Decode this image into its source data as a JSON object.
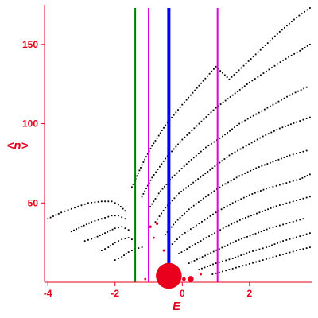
{
  "chart_data": {
    "type": "scatter",
    "title": "",
    "xlabel": "E",
    "ylabel": "<n>",
    "xlim": [
      -4.1,
      3.85
    ],
    "ylim": [
      0,
      175
    ],
    "xticks": [
      {
        "value": -4,
        "label": "-4"
      },
      {
        "value": -2,
        "label": "-2"
      },
      {
        "value": 0,
        "label": "0"
      },
      {
        "value": 2,
        "label": "2"
      }
    ],
    "yticks": [
      {
        "value": 50,
        "label": "50"
      },
      {
        "value": 100,
        "label": "100"
      },
      {
        "value": 150,
        "label": "150"
      }
    ],
    "grid": false,
    "colors": {
      "axes": "#e8001c",
      "points": "#000000",
      "red_points": "#e8001c"
    },
    "vertical_lines": [
      {
        "x": -1.4,
        "color": "#008000",
        "width": 2
      },
      {
        "x": -1.0,
        "color": "#e000e0",
        "width": 2
      },
      {
        "x": -0.4,
        "color": "#0000ff",
        "width": 4
      },
      {
        "x": 1.05,
        "color": "#e000e0",
        "width": 2
      }
    ],
    "highlighted_points": [
      {
        "x": -0.4,
        "y": 4,
        "color": "#e8001c",
        "size": 3.4
      },
      {
        "x": 0.25,
        "y": 2,
        "color": "#e8001c",
        "size": 0.8
      },
      {
        "x": 0.05,
        "y": 2,
        "color": "#e8001c",
        "size": 0.5
      },
      {
        "x": -0.58,
        "y": 2,
        "color": "#e8001c",
        "size": 0.5
      },
      {
        "x": -0.95,
        "y": 35,
        "color": "#e8001c",
        "size": 0.35
      },
      {
        "x": -0.75,
        "y": 37,
        "color": "#e8001c",
        "size": 0.35
      },
      {
        "x": -0.85,
        "y": 28,
        "color": "#e8001c",
        "size": 0.3
      },
      {
        "x": -0.55,
        "y": 20,
        "color": "#e8001c",
        "size": 0.3
      },
      {
        "x": 0.55,
        "y": 5,
        "color": "#e8001c",
        "size": 0.3
      },
      {
        "x": -1.1,
        "y": 2,
        "color": "#e8001c",
        "size": 0.3
      }
    ],
    "series": [
      {
        "x": [
          -4.0,
          -3.6,
          -3.2,
          -2.8,
          -2.4,
          -2.1,
          -1.9,
          -1.7
        ],
        "y": [
          40,
          44,
          47,
          50,
          51,
          51,
          49,
          45
        ]
      },
      {
        "x": [
          -3.3,
          -3.0,
          -2.7,
          -2.4,
          -2.1,
          -1.9,
          -1.7
        ],
        "y": [
          32,
          35,
          38,
          40,
          42,
          42,
          40
        ]
      },
      {
        "x": [
          -2.9,
          -2.6,
          -2.3,
          -2.0,
          -1.8,
          -1.6
        ],
        "y": [
          26,
          28,
          31,
          34,
          35,
          33
        ]
      },
      {
        "x": [
          -2.4,
          -2.2,
          -2.0,
          -1.8,
          -1.6,
          -1.4
        ],
        "y": [
          20,
          22,
          25,
          27,
          28,
          26
        ]
      },
      {
        "x": [
          -2.0,
          -1.8,
          -1.6,
          -1.4,
          -1.2
        ],
        "y": [
          14,
          16,
          19,
          21,
          22
        ]
      },
      {
        "x": [
          -1.5,
          -1.2,
          -0.9,
          -0.5,
          0.0,
          0.5,
          1.0,
          1.4,
          1.9,
          2.4,
          2.9,
          3.4,
          3.8
        ],
        "y": [
          60,
          74,
          86,
          99,
          112,
          124,
          136,
          128,
          138,
          148,
          158,
          167,
          173
        ]
      },
      {
        "x": [
          -1.2,
          -0.9,
          -0.5,
          0.0,
          0.5,
          1.0,
          1.5,
          2.0,
          2.5,
          3.0,
          3.5,
          3.8
        ],
        "y": [
          54,
          66,
          78,
          90,
          100,
          110,
          118,
          126,
          133,
          140,
          146,
          150
        ]
      },
      {
        "x": [
          -1.0,
          -0.7,
          -0.3,
          0.2,
          0.7,
          1.2,
          1.7,
          2.2,
          2.7,
          3.2,
          3.7
        ],
        "y": [
          46,
          56,
          66,
          76,
          85,
          92,
          100,
          106,
          112,
          118,
          123
        ]
      },
      {
        "x": [
          -0.8,
          -0.5,
          -0.1,
          0.4,
          0.9,
          1.4,
          1.9,
          2.4,
          2.9,
          3.4,
          3.8
        ],
        "y": [
          38,
          47,
          56,
          64,
          72,
          80,
          86,
          92,
          97,
          101,
          104
        ]
      },
      {
        "x": [
          -0.5,
          -0.2,
          0.2,
          0.7,
          1.2,
          1.7,
          2.2,
          2.7,
          3.2,
          3.7
        ],
        "y": [
          30,
          38,
          46,
          54,
          61,
          67,
          72,
          76,
          80,
          83
        ]
      },
      {
        "x": [
          -0.3,
          0.0,
          0.5,
          1.0,
          1.5,
          2.0,
          2.5,
          3.0,
          3.5,
          3.8
        ],
        "y": [
          24,
          30,
          37,
          44,
          50,
          55,
          59,
          62,
          65,
          68
        ]
      },
      {
        "x": [
          -0.1,
          0.3,
          0.8,
          1.3,
          1.8,
          2.3,
          2.8,
          3.3,
          3.8
        ],
        "y": [
          18,
          23,
          29,
          35,
          40,
          44,
          48,
          51,
          54
        ]
      },
      {
        "x": [
          0.2,
          0.6,
          1.1,
          1.6,
          2.1,
          2.6,
          3.1,
          3.6
        ],
        "y": [
          12,
          16,
          21,
          26,
          30,
          34,
          37,
          40
        ]
      },
      {
        "x": [
          0.5,
          1.0,
          1.5,
          2.0,
          2.5,
          3.0,
          3.5,
          3.8
        ],
        "y": [
          8,
          12,
          15,
          19,
          22,
          26,
          29,
          31
        ]
      },
      {
        "x": [
          0.9,
          1.4,
          1.9,
          2.4,
          2.9,
          3.4,
          3.8
        ],
        "y": [
          5,
          8,
          11,
          14,
          17,
          20,
          22
        ]
      }
    ]
  }
}
